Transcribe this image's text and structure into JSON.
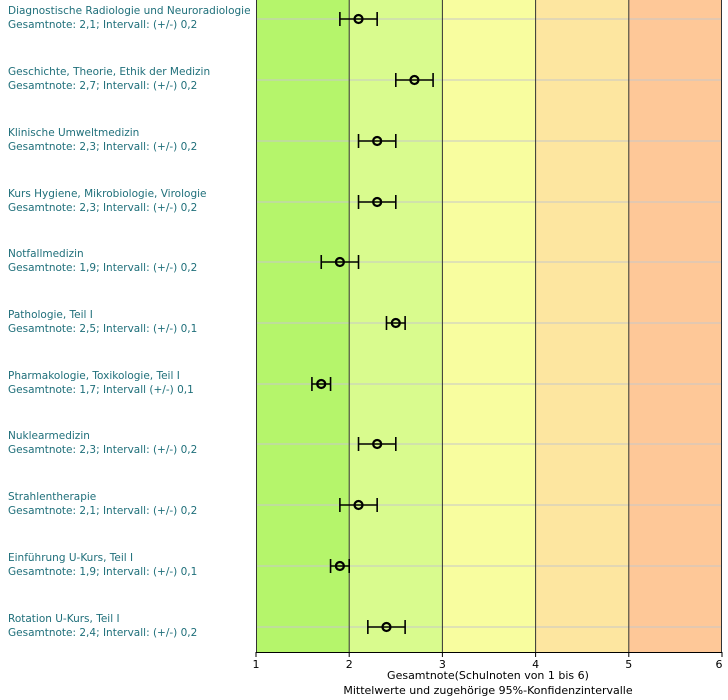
{
  "chart_data": {
    "type": "errorbar",
    "xlabel": "Gesamtnote(Schulnoten von 1 bis 6)",
    "subtitle": "Mittelwerte und zugehörige 95%-Konfidenzintervalle",
    "xlim": [
      1,
      6
    ],
    "xticks": [
      "1",
      "2",
      "3",
      "4",
      "5",
      "6"
    ],
    "bands": [
      {
        "from": 1,
        "to": 2,
        "color": "#b5f56b"
      },
      {
        "from": 2,
        "to": 3,
        "color": "#d9fb8e"
      },
      {
        "from": 3,
        "to": 4,
        "color": "#f8fd9f"
      },
      {
        "from": 4,
        "to": 5,
        "color": "#fde6a0"
      },
      {
        "from": 5,
        "to": 6,
        "color": "#fec898"
      }
    ],
    "items": [
      {
        "title": "Diagnostische Radiologie und Neuroradiologie",
        "summary": "Gesamtnote: 2,1;  Intervall: (+/-) 0,2",
        "mean": 2.1,
        "ci": 0.2
      },
      {
        "title": "Geschichte, Theorie, Ethik der Medizin",
        "summary": "Gesamtnote: 2,7;  Intervall: (+/-) 0,2",
        "mean": 2.7,
        "ci": 0.2
      },
      {
        "title": "Klinische Umweltmedizin",
        "summary": "Gesamtnote: 2,3;  Intervall: (+/-) 0,2",
        "mean": 2.3,
        "ci": 0.2
      },
      {
        "title": "Kurs Hygiene, Mikrobiologie, Virologie",
        "summary": "Gesamtnote: 2,3;  Intervall: (+/-) 0,2",
        "mean": 2.3,
        "ci": 0.2
      },
      {
        "title": "Notfallmedizin",
        "summary": "Gesamtnote: 1,9;  Intervall: (+/-) 0,2",
        "mean": 1.9,
        "ci": 0.2
      },
      {
        "title": "Pathologie, Teil I",
        "summary": "Gesamtnote: 2,5;  Intervall: (+/-) 0,1",
        "mean": 2.5,
        "ci": 0.1
      },
      {
        "title": "Pharmakologie, Toxikologie, Teil I",
        "summary": "Gesamtnote: 1,7;  Intervall (+/-) 0,1",
        "mean": 1.7,
        "ci": 0.1
      },
      {
        "title": "Nuklearmedizin",
        "summary": "Gesamtnote: 2,3;  Intervall: (+/-) 0,2",
        "mean": 2.3,
        "ci": 0.2
      },
      {
        "title": "Strahlentherapie",
        "summary": "Gesamtnote: 2,1;  Intervall: (+/-) 0,2",
        "mean": 2.1,
        "ci": 0.2
      },
      {
        "title": "Einführung U-Kurs, Teil I",
        "summary": "Gesamtnote: 1,9;  Intervall: (+/-) 0,1",
        "mean": 1.9,
        "ci": 0.1
      },
      {
        "title": "Rotation U-Kurs, Teil I",
        "summary": "Gesamtnote: 2,4;  Intervall: (+/-) 0,2",
        "mean": 2.4,
        "ci": 0.2
      }
    ]
  }
}
